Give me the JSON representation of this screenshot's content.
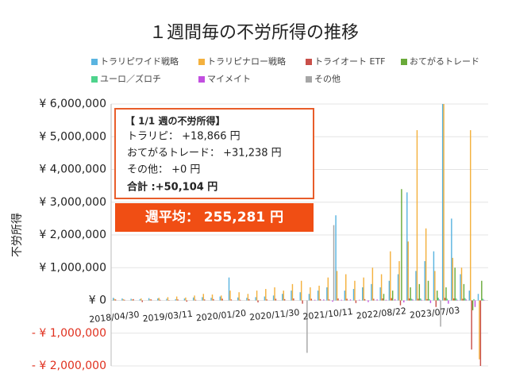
{
  "chart_data": {
    "type": "bar",
    "title": "１週間毎の不労所得の推移",
    "y_label": "不労所得",
    "categories": [
      "2018/04/30",
      null,
      null,
      null,
      null,
      null,
      "2019/03/11",
      null,
      null,
      null,
      null,
      null,
      "2020/01/20",
      null,
      null,
      null,
      null,
      null,
      "2020/11/30",
      null,
      null,
      null,
      null,
      null,
      "2021/10/11",
      null,
      null,
      null,
      null,
      null,
      "2022/08/22",
      null,
      null,
      null,
      null,
      null,
      "2023/07/03",
      null,
      null,
      null,
      null,
      null
    ],
    "series": [
      {
        "name": "トラリピワイド戦略",
        "color": "#5ab4e0",
        "values": [
          80000,
          60000,
          50000,
          40000,
          70000,
          60000,
          50000,
          40000,
          60000,
          90000,
          100000,
          80000,
          120000,
          700000,
          90000,
          80000,
          100000,
          120000,
          150000,
          200000,
          300000,
          250000,
          200000,
          300000,
          400000,
          2600000,
          300000,
          350000,
          400000,
          500000,
          400000,
          600000,
          800000,
          3300000,
          900000,
          1200000,
          1500000,
          6000000,
          2500000,
          800000,
          300000,
          200000
        ]
      },
      {
        "name": "トラリピナロー戦略",
        "color": "#f4b13e",
        "values": [
          50000,
          40000,
          30000,
          60000,
          40000,
          80000,
          100000,
          120000,
          90000,
          150000,
          200000,
          180000,
          150000,
          300000,
          250000,
          200000,
          300000,
          350000,
          400000,
          300000,
          500000,
          600000,
          400000,
          450000,
          700000,
          900000,
          800000,
          600000,
          700000,
          1000000,
          800000,
          1500000,
          1200000,
          1800000,
          5200000,
          2200000,
          900000,
          6000000,
          1300000,
          1000000,
          5200000,
          -1800000
        ]
      },
      {
        "name": "トライオート ETF",
        "color": "#c9504a",
        "values": [
          30000,
          20000,
          40000,
          -50000,
          30000,
          20000,
          10000,
          30000,
          -40000,
          20000,
          30000,
          40000,
          50000,
          30000,
          20000,
          40000,
          -60000,
          30000,
          50000,
          40000,
          60000,
          -100000,
          50000,
          40000,
          30000,
          60000,
          50000,
          -80000,
          40000,
          50000,
          60000,
          70000,
          -150000,
          60000,
          50000,
          40000,
          -200000,
          80000,
          60000,
          50000,
          -1500000,
          -2000000
        ]
      },
      {
        "name": "おてがるトレード",
        "color": "#6aaa3a",
        "values": [
          0,
          0,
          0,
          0,
          0,
          0,
          0,
          0,
          0,
          0,
          0,
          0,
          0,
          0,
          0,
          0,
          0,
          0,
          0,
          0,
          0,
          0,
          0,
          0,
          0,
          0,
          0,
          0,
          0,
          0,
          200000,
          300000,
          3400000,
          400000,
          500000,
          600000,
          300000,
          400000,
          1000000,
          500000,
          -300000,
          600000
        ]
      },
      {
        "name": "ユーロ／ズロチ",
        "color": "#4ed38c",
        "values": [
          0,
          0,
          0,
          0,
          0,
          0,
          0,
          0,
          0,
          0,
          0,
          0,
          0,
          0,
          0,
          0,
          0,
          0,
          0,
          0,
          0,
          0,
          0,
          0,
          0,
          0,
          0,
          0,
          0,
          0,
          0,
          0,
          0,
          50000,
          60000,
          40000,
          80000,
          50000,
          60000,
          70000,
          40000,
          50000
        ]
      },
      {
        "name": "マイメイト",
        "color": "#c24fe0",
        "values": [
          0,
          0,
          0,
          0,
          0,
          0,
          0,
          0,
          0,
          0,
          0,
          0,
          0,
          0,
          0,
          0,
          0,
          0,
          0,
          0,
          0,
          0,
          20000,
          30000,
          -40000,
          20000,
          30000,
          20000,
          -50000,
          30000,
          20000,
          40000,
          -60000,
          30000,
          20000,
          -80000,
          30000,
          -100000,
          20000,
          30000,
          -200000,
          20000
        ]
      },
      {
        "name": "その他",
        "color": "#a6a6a6",
        "values": [
          0,
          0,
          0,
          0,
          0,
          0,
          0,
          0,
          0,
          0,
          0,
          0,
          0,
          0,
          0,
          0,
          0,
          0,
          0,
          0,
          0,
          -1600000,
          0,
          0,
          2300000,
          0,
          0,
          0,
          0,
          0,
          0,
          0,
          0,
          0,
          0,
          0,
          -800000,
          0,
          0,
          0,
          0,
          0
        ]
      }
    ],
    "ylim": [
      -2000000,
      6000000
    ],
    "yticks": [
      {
        "value": -2000000,
        "label": "- ¥ 2,000,000"
      },
      {
        "value": -1000000,
        "label": "- ¥ 1,000,000"
      },
      {
        "value": 0,
        "label": "¥ 0"
      },
      {
        "value": 1000000,
        "label": "¥ 1,000,000"
      },
      {
        "value": 2000000,
        "label": "¥ 2,000,000"
      },
      {
        "value": 3000000,
        "label": "¥ 3,000,000"
      },
      {
        "value": 4000000,
        "label": "¥ 4,000,000"
      },
      {
        "value": 5000000,
        "label": "¥ 5,000,000"
      },
      {
        "value": 6000000,
        "label": "¥ 6,000,000"
      }
    ],
    "annotations": {
      "box_title": "【 1/1 週の不労所得】",
      "lines": [
        "トラリピ： +18,866 円",
        "おてがるトレード： +31,238 円",
        "その他： +0 円"
      ],
      "total": "合計 :+50,104 円",
      "average": "週平均： 255,281 円"
    }
  }
}
